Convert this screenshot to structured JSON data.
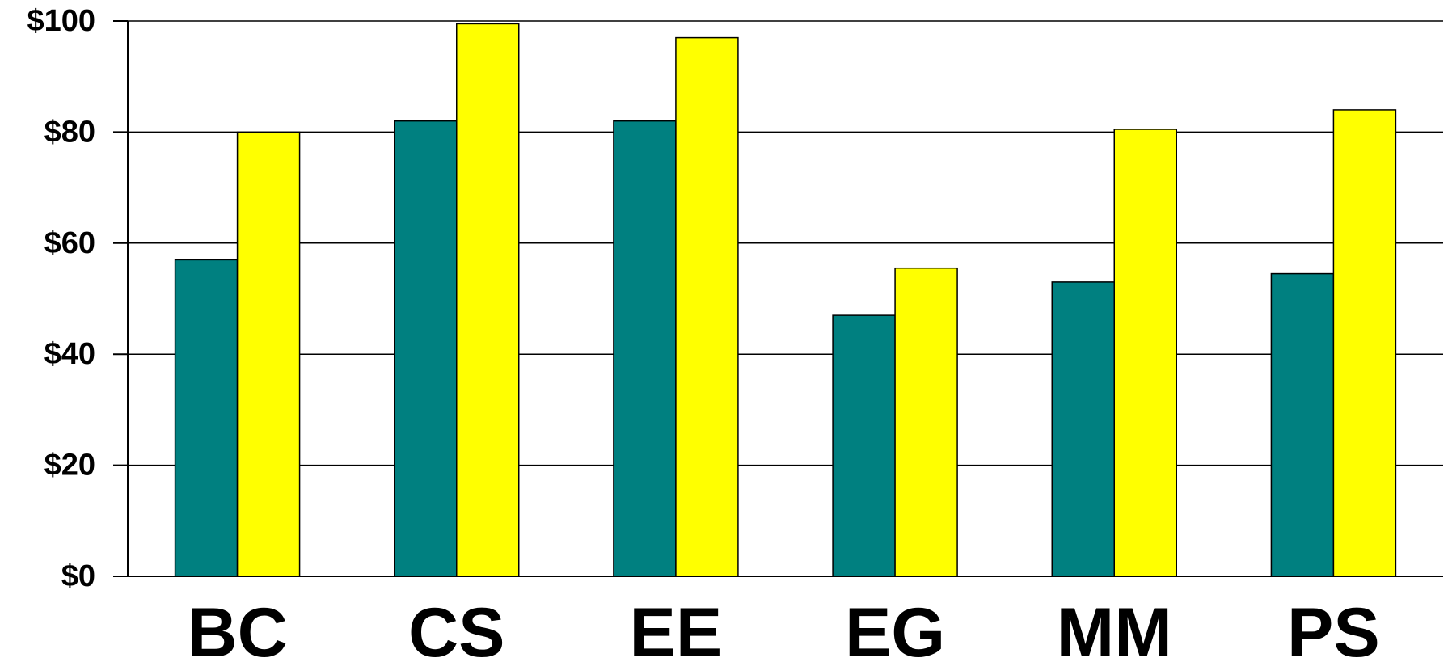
{
  "chart_data": {
    "type": "bar",
    "title": "",
    "xlabel": "",
    "ylabel": "",
    "categories": [
      "BC",
      "CS",
      "EE",
      "EG",
      "MM",
      "PS"
    ],
    "series": [
      {
        "color": "#008080",
        "values": [
          57,
          82,
          82,
          47,
          53,
          54.5
        ]
      },
      {
        "color": "#FFFF00",
        "values": [
          80,
          99.5,
          97,
          55.5,
          80.5,
          84
        ]
      }
    ],
    "ylim": [
      0,
      100
    ],
    "yticks": [
      0,
      20,
      40,
      60,
      80,
      100
    ],
    "ytick_labels": [
      "$0",
      "$20",
      "$40",
      "$60",
      "$80",
      "$100"
    ],
    "grid": true,
    "legend": "none"
  }
}
